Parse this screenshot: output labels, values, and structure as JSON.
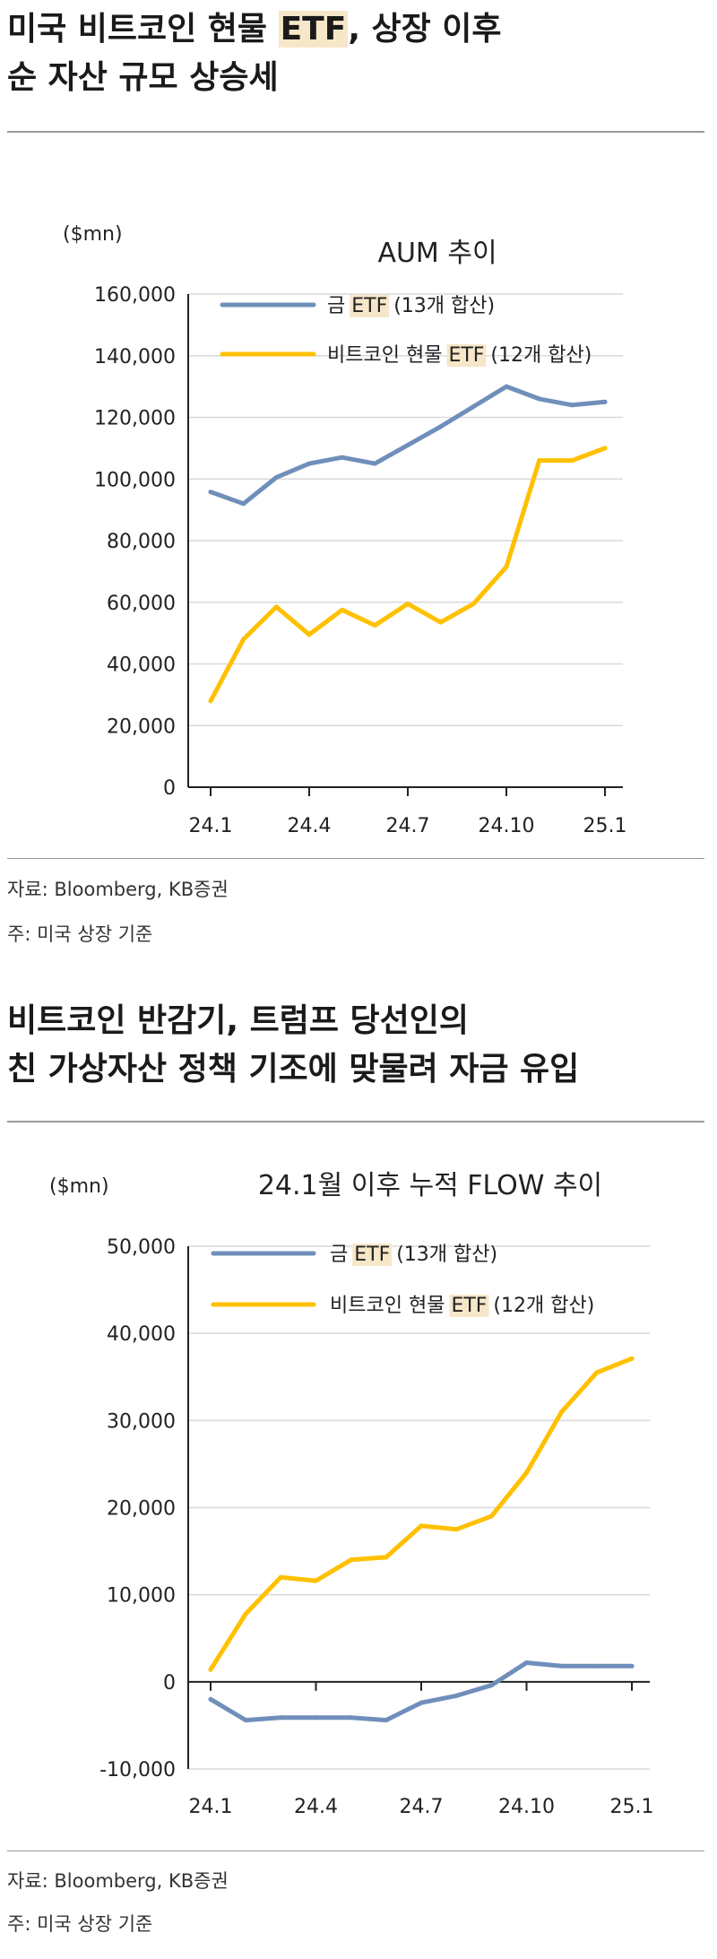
{
  "colors": {
    "gold": "#6f8fba",
    "bitcoin": "#ffc000",
    "highlight": "#f6e7c9"
  },
  "sections": [
    {
      "title_lines": [
        {
          "before": "미국 비트코인 현물 ",
          "hl": "ETF",
          "after": ", 상장 이후"
        },
        {
          "before": "순 자산 규모 상승세",
          "hl": "",
          "after": ""
        }
      ],
      "source": "자료: Bloomberg, KB증권",
      "footnote": "주: 미국 상장 기준"
    },
    {
      "title_lines": [
        {
          "before": "비트코인 반감기, 트럼프 당선인의",
          "hl": "",
          "after": ""
        },
        {
          "before": "친 가상자산 정책 기조에 맞물려 자금 유입",
          "hl": "",
          "after": ""
        }
      ],
      "source": "자료: Bloomberg, KB증권",
      "footnote": "주: 미국 상장 기준"
    }
  ],
  "chart_data": [
    {
      "type": "line",
      "title": "AUM 추이",
      "unit": "($mn)",
      "x_tick_labels": [
        "24.1",
        "24.4",
        "24.7",
        "24.10",
        "25.1"
      ],
      "x_tick_index": [
        0,
        3,
        6,
        9,
        12
      ],
      "x_count": 13,
      "ylim": [
        0,
        160000
      ],
      "y_ticks": [
        0,
        20000,
        40000,
        60000,
        80000,
        100000,
        120000,
        140000,
        160000
      ],
      "y_tick_labels": [
        "0",
        "20,000",
        "40,000",
        "60,000",
        "80,000",
        "100,000",
        "120,000",
        "140,000",
        "160,000"
      ],
      "grid": true,
      "legend_position": "top",
      "series": [
        {
          "name_before": "금 ",
          "name_hl": "ETF",
          "name_after": " (13개 합산)",
          "color_key": "gold",
          "values": [
            95800,
            92000,
            100500,
            105000,
            107000,
            105000,
            111000,
            117000,
            123500,
            130000,
            126000,
            124000,
            125000
          ]
        },
        {
          "name_before": "비트코인 현물 ",
          "name_hl": "ETF",
          "name_after": " (12개 합산)",
          "color_key": "bitcoin",
          "values": [
            28000,
            48000,
            58500,
            49500,
            57500,
            52500,
            59500,
            53500,
            59500,
            71500,
            106000,
            106000,
            110000
          ]
        }
      ]
    },
    {
      "type": "line",
      "title": "24.1월 이후 누적 FLOW 추이",
      "unit": "($mn)",
      "x_tick_labels": [
        "24.1",
        "24.4",
        "24.7",
        "24.10",
        "25.1"
      ],
      "x_tick_index": [
        0,
        3,
        6,
        9,
        12
      ],
      "x_count": 13,
      "ylim": [
        -10000,
        50000
      ],
      "y_ticks": [
        -10000,
        0,
        10000,
        20000,
        30000,
        40000,
        50000
      ],
      "y_tick_labels": [
        "-10,000",
        "0",
        "10,000",
        "20,000",
        "30,000",
        "40,000",
        "50,000"
      ],
      "grid": true,
      "legend_position": "top",
      "series": [
        {
          "name_before": "금 ",
          "name_hl": "ETF",
          "name_after": " (13개 합산)",
          "color_key": "gold",
          "values": [
            -2000,
            -4400,
            -4100,
            -4100,
            -4100,
            -4400,
            -2400,
            -1600,
            -400,
            2200,
            1800,
            1800,
            1800
          ]
        },
        {
          "name_before": "비트코인 현물 ",
          "name_hl": "ETF",
          "name_after": " (12개 합산)",
          "color_key": "bitcoin",
          "values": [
            1400,
            7800,
            12000,
            11600,
            14000,
            14300,
            17900,
            17500,
            19000,
            24000,
            31000,
            35500,
            37100
          ]
        }
      ]
    }
  ]
}
